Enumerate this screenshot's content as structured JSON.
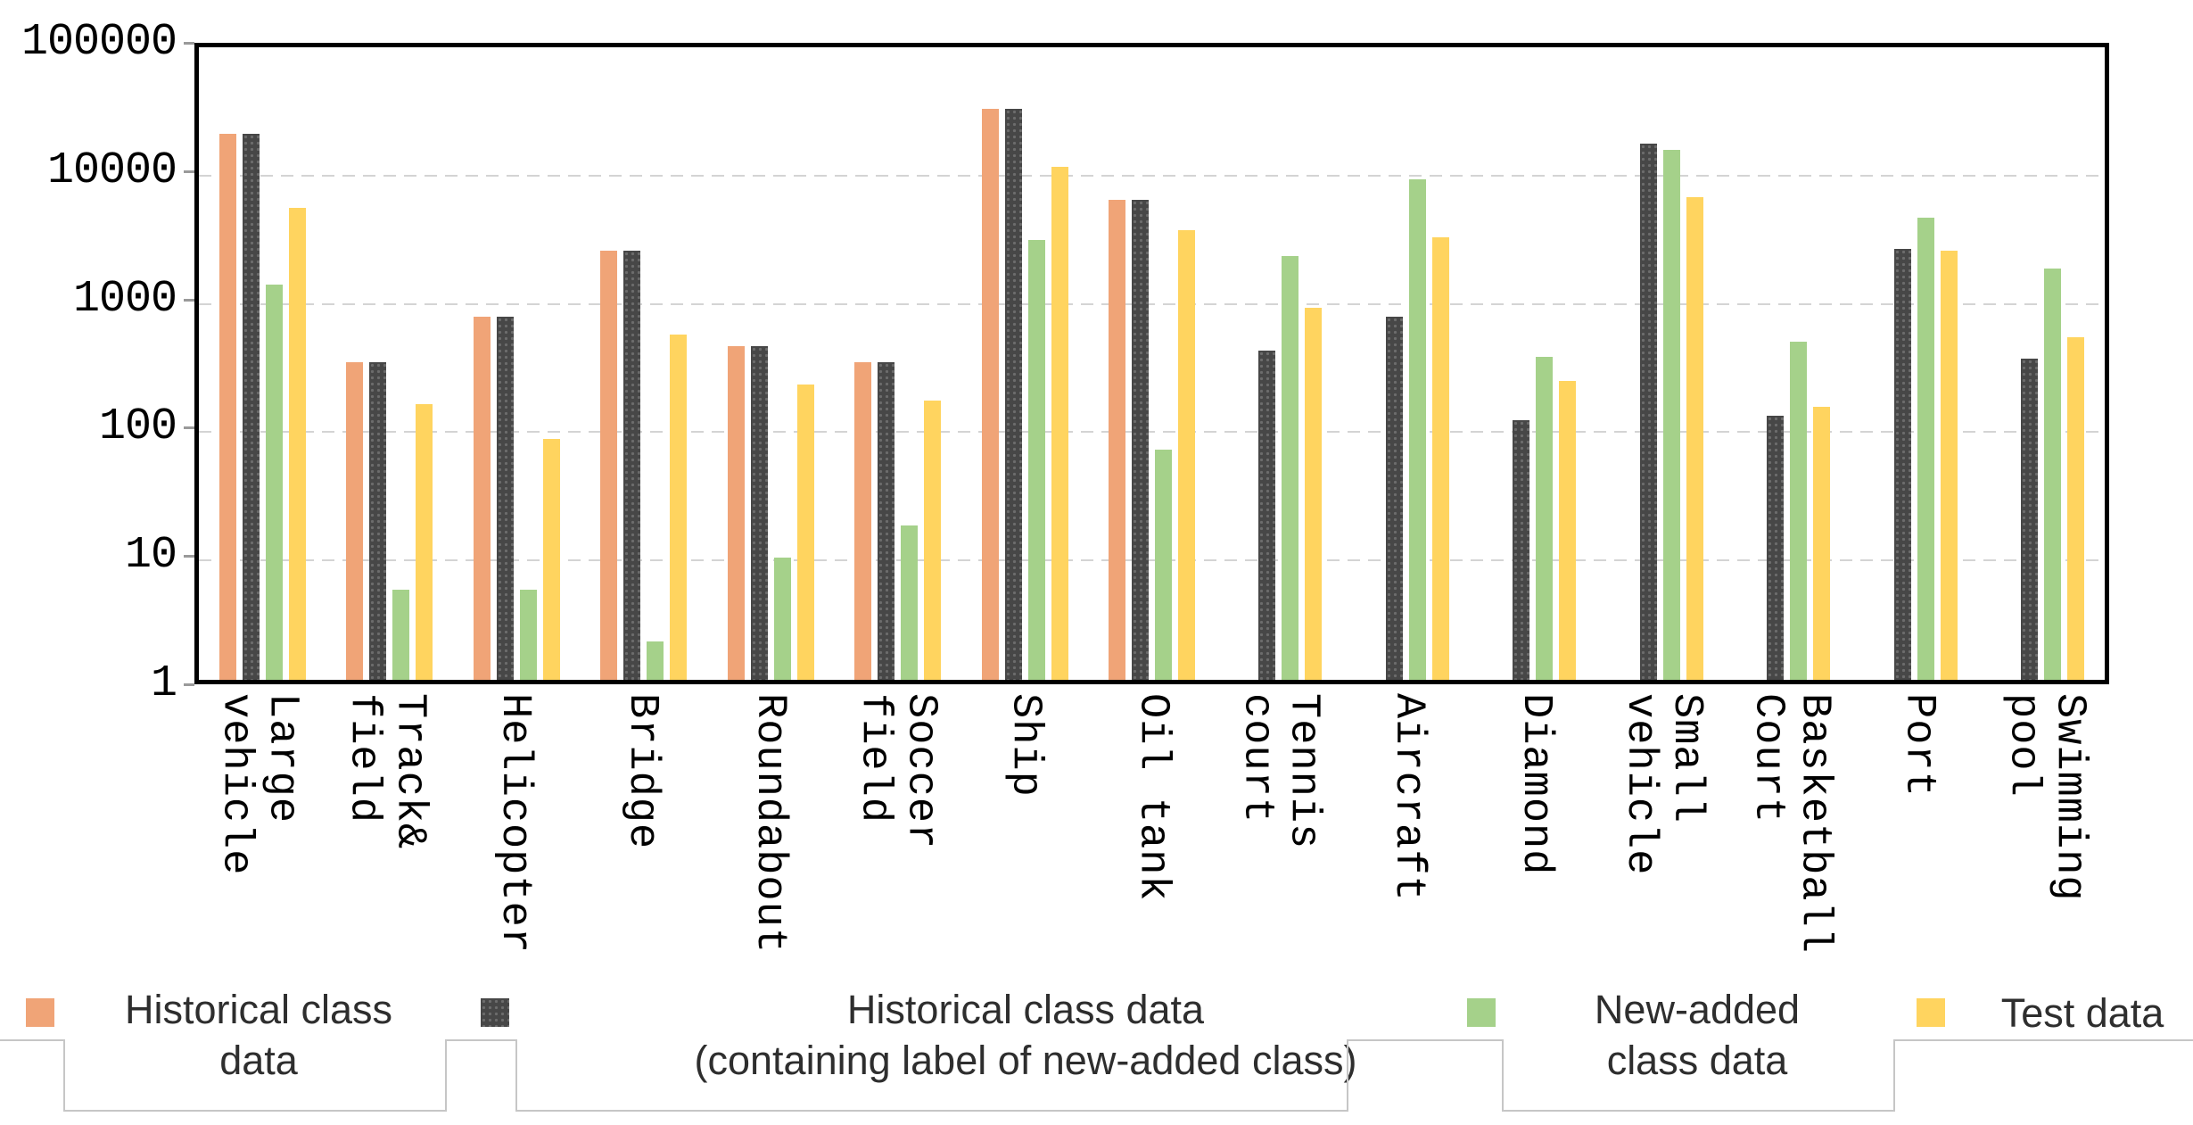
{
  "chart_data": {
    "type": "bar",
    "title": "",
    "xlabel": "",
    "ylabel": "",
    "y_scale": "log10",
    "ylim": [
      1,
      100000
    ],
    "y_ticks": [
      "100000",
      "10000",
      "1000",
      "100",
      "10",
      "1"
    ],
    "grid": "horizontal-dashed",
    "legend_position": "bottom",
    "categories": [
      [
        "Large",
        "vehicle"
      ],
      [
        "Track&",
        "field"
      ],
      [
        "Helicopter"
      ],
      [
        "Bridge"
      ],
      [
        "Roundabout"
      ],
      [
        "Soccer",
        "field"
      ],
      [
        "Ship"
      ],
      [
        "Oil tank"
      ],
      [
        "Tennis",
        "court"
      ],
      [
        "Aircraft"
      ],
      [
        "Diamond"
      ],
      [
        "Small",
        "vehicle"
      ],
      [
        "Basketball",
        "Court"
      ],
      [
        "Port"
      ],
      [
        "Swimming",
        "pool"
      ]
    ],
    "series": [
      {
        "name": "Historical class data",
        "legend_lines": [
          "Historical class",
          "data"
        ],
        "color": "#F0A477",
        "pattern": "solid",
        "values": [
          18000,
          300,
          680,
          2200,
          400,
          300,
          28000,
          5500,
          null,
          null,
          null,
          null,
          null,
          null,
          null
        ]
      },
      {
        "name": "Historical class data (containing label of new-added class)",
        "legend_lines": [
          "Historical class data",
          "(containing label of new-added class)"
        ],
        "color": "#474747",
        "pattern": "dots",
        "values": [
          18000,
          300,
          680,
          2200,
          400,
          300,
          28000,
          5500,
          370,
          680,
          105,
          15000,
          115,
          2300,
          320
        ]
      },
      {
        "name": "New-added class data",
        "legend_lines": [
          "New-added",
          "class data"
        ],
        "color": "#A5D18A",
        "pattern": "solid",
        "values": [
          1200,
          5,
          5,
          2,
          9,
          16,
          2700,
          62,
          2000,
          8000,
          330,
          13500,
          430,
          4000,
          1600
        ]
      },
      {
        "name": "Test data",
        "legend_lines": [
          "Test data"
        ],
        "color": "#FFD45F",
        "pattern": "solid",
        "values": [
          4800,
          140,
          75,
          490,
          200,
          150,
          10000,
          3200,
          800,
          2800,
          215,
          5800,
          135,
          2200,
          470
        ]
      }
    ]
  }
}
